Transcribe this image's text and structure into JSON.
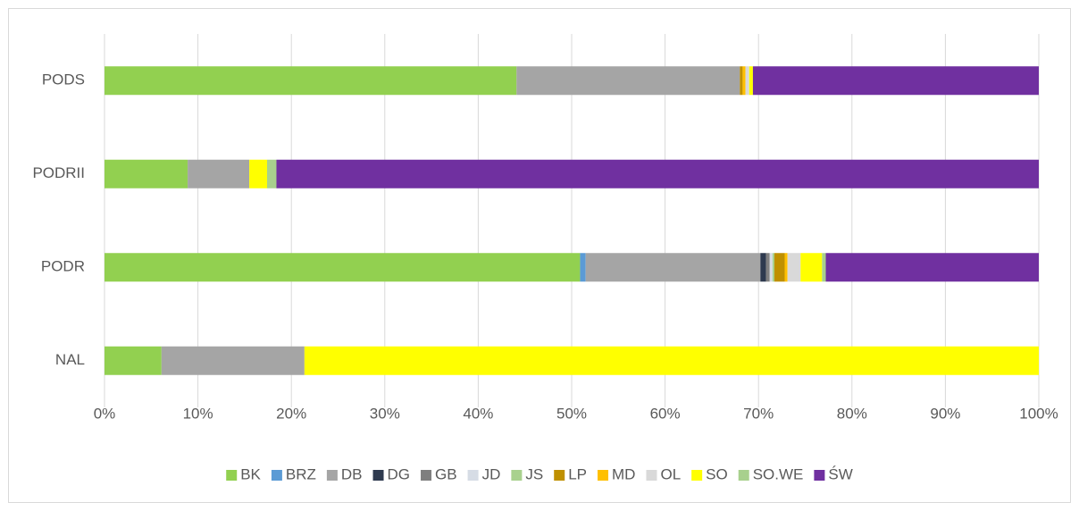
{
  "chart_data": {
    "type": "stacked-barh",
    "categories": [
      "NAL",
      "PODR",
      "PODRII",
      "PODS"
    ],
    "series": [
      {
        "name": "BK",
        "color": "#92d050",
        "values": [
          6.1,
          50.9,
          8.9,
          44.1
        ]
      },
      {
        "name": "BRZ",
        "color": "#5b9bd5",
        "values": [
          0,
          0.6,
          0,
          0
        ]
      },
      {
        "name": "DB",
        "color": "#a5a5a5",
        "values": [
          15.3,
          18.7,
          6.6,
          23.9
        ]
      },
      {
        "name": "DG",
        "color": "#2e3a4f",
        "values": [
          0,
          0.6,
          0,
          0
        ]
      },
      {
        "name": "GB",
        "color": "#7f7f7f",
        "values": [
          0,
          0.4,
          0,
          0
        ]
      },
      {
        "name": "JD",
        "color": "#d6dce5",
        "values": [
          0,
          0.3,
          0,
          0
        ]
      },
      {
        "name": "JS",
        "color": "#a9d18e",
        "values": [
          0,
          0.2,
          0,
          0
        ]
      },
      {
        "name": "LP",
        "color": "#bf9000",
        "values": [
          0,
          1.1,
          0,
          0.3
        ]
      },
      {
        "name": "MD",
        "color": "#ffc000",
        "values": [
          0,
          0.3,
          0,
          0.3
        ]
      },
      {
        "name": "OL",
        "color": "#d9d9d9",
        "values": [
          0,
          1.4,
          0,
          0.4
        ]
      },
      {
        "name": "SO",
        "color": "#ffff00",
        "values": [
          78.6,
          2.3,
          1.9,
          0.4
        ]
      },
      {
        "name": "SO.WE",
        "color": "#a8d08d",
        "values": [
          0,
          0.4,
          1.0,
          0
        ]
      },
      {
        "name": "ŚW",
        "color": "#7030a0",
        "values": [
          0,
          22.8,
          81.6,
          30.6
        ]
      }
    ],
    "xlim": [
      0,
      100
    ],
    "xticks": [
      {
        "value": 0,
        "label": "0%"
      },
      {
        "value": 10,
        "label": "10%"
      },
      {
        "value": 20,
        "label": "20%"
      },
      {
        "value": 30,
        "label": "30%"
      },
      {
        "value": 40,
        "label": "40%"
      },
      {
        "value": 50,
        "label": "50%"
      },
      {
        "value": 60,
        "label": "60%"
      },
      {
        "value": 70,
        "label": "70%"
      },
      {
        "value": 80,
        "label": "80%"
      },
      {
        "value": 90,
        "label": "90%"
      },
      {
        "value": 100,
        "label": "100%"
      }
    ],
    "grid": true,
    "legend": "bottom"
  }
}
